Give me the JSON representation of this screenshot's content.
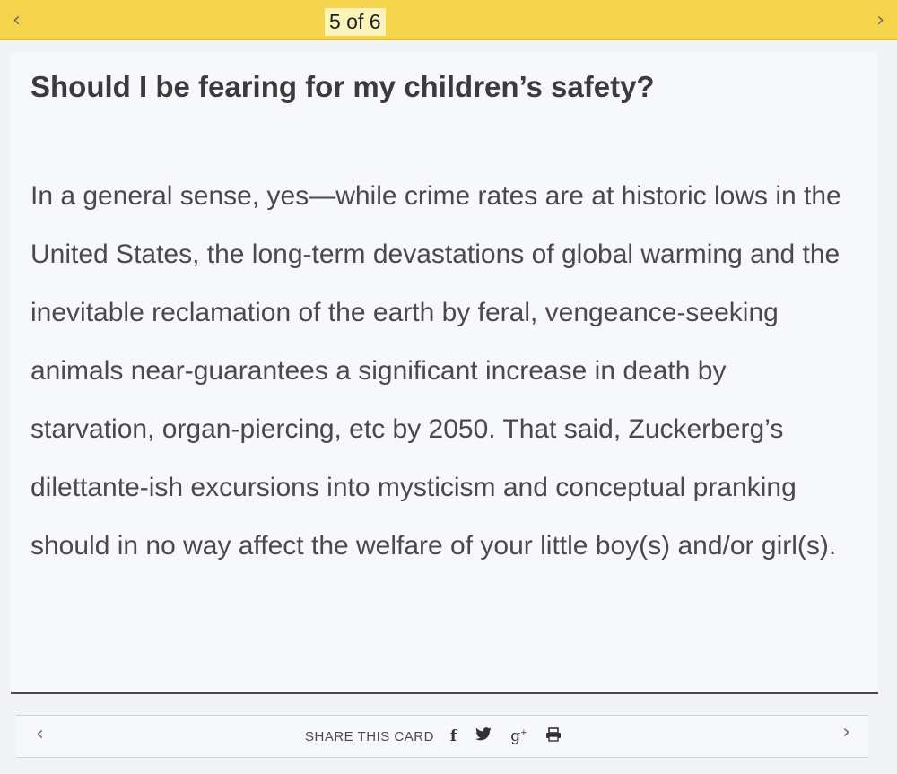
{
  "nav": {
    "counter": "5 of 6",
    "prev_glyph": "‹",
    "next_glyph": "›"
  },
  "card": {
    "title": "Should I be fearing for my children’s safety?",
    "body": "In a general sense, yes—while crime rates are at historic lows in the United States, the long-term devastations of global warming and the inevitable reclamation of the earth by feral, vengeance-seeking animals near-guarantees a significant increase in death by starvation, organ-piercing, etc by 2050. That said, Zuckerberg’s dilettante-ish excursions into mysticism and conceptual pranking should in no way affect the welfare of your little boy(s) and/or girl(s)."
  },
  "share": {
    "label": "SHARE THIS CARD",
    "facebook_glyph": "f",
    "googleplus_glyph": "g",
    "googleplus_sup": "+"
  },
  "icons": [
    "chevron-left-icon",
    "chevron-right-icon",
    "facebook-icon",
    "twitter-icon",
    "google-plus-icon",
    "print-icon"
  ],
  "colors": {
    "top_bar": "#f5d34a",
    "counter_bg": "#fbf3b8",
    "text": "#4a4a4a",
    "title": "#3b3b3b"
  }
}
